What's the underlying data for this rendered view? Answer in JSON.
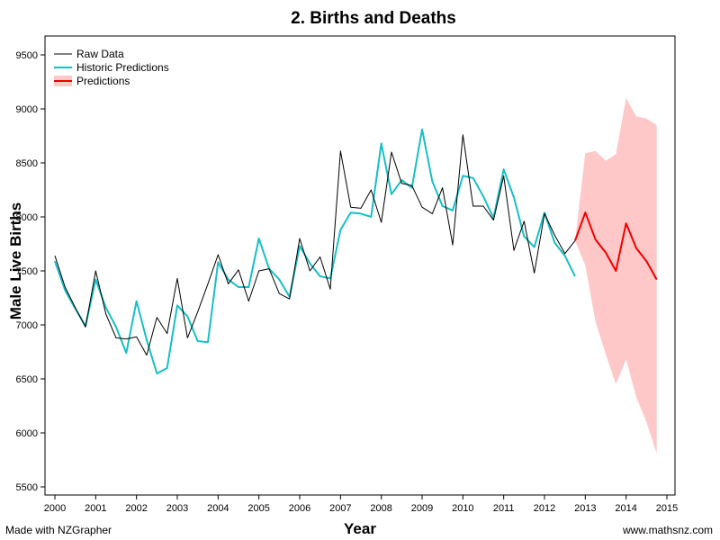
{
  "footer": {
    "left": "Made with NZGrapher",
    "right": "www.mathsnz.com"
  },
  "chart_data": {
    "type": "line",
    "title": "2. Births and Deaths",
    "xlabel": "Year",
    "ylabel": "Male Live Births",
    "xlim": [
      2000,
      2015
    ],
    "ylim": [
      5500,
      9500
    ],
    "x_ticks": [
      "2000",
      "2001",
      "2002",
      "2003",
      "2004",
      "2005",
      "2006",
      "2007",
      "2008",
      "2009",
      "2010",
      "2011",
      "2012",
      "2013",
      "2014",
      "2015"
    ],
    "y_ticks": [
      "5500",
      "6000",
      "6500",
      "7000",
      "7500",
      "8000",
      "8500",
      "9000",
      "9500"
    ],
    "grid": false,
    "legend_position": "top-left",
    "colors": {
      "raw": "#000000",
      "historic": "#17bfc4",
      "predictions": "#ee0000",
      "band": "#ffc8c8"
    },
    "series": [
      {
        "name": "Raw Data",
        "x": [
          2000.0,
          2000.25,
          2000.5,
          2000.75,
          2001.0,
          2001.25,
          2001.5,
          2001.75,
          2002.0,
          2002.25,
          2002.5,
          2002.75,
          2003.0,
          2003.25,
          2003.5,
          2003.75,
          2004.0,
          2004.25,
          2004.5,
          2004.75,
          2005.0,
          2005.25,
          2005.5,
          2005.75,
          2006.0,
          2006.25,
          2006.5,
          2006.75,
          2007.0,
          2007.25,
          2007.5,
          2007.75,
          2008.0,
          2008.25,
          2008.5,
          2008.75,
          2009.0,
          2009.25,
          2009.5,
          2009.75,
          2010.0,
          2010.25,
          2010.5,
          2010.75,
          2011.0,
          2011.25,
          2011.5,
          2011.75,
          2012.0,
          2012.25,
          2012.5,
          2012.75
        ],
        "y": [
          7640,
          7350,
          7160,
          6980,
          7500,
          7100,
          6880,
          6870,
          6890,
          6720,
          7070,
          6920,
          7430,
          6880,
          7120,
          7380,
          7650,
          7380,
          7510,
          7220,
          7500,
          7520,
          7290,
          7240,
          7800,
          7500,
          7630,
          7330,
          8610,
          8090,
          8080,
          8250,
          7950,
          8600,
          8310,
          8290,
          8090,
          8030,
          8270,
          7740,
          8760,
          8100,
          8100,
          7970,
          8380,
          7690,
          7960,
          7480,
          8030,
          7830,
          7660,
          7780
        ]
      },
      {
        "name": "Historic Predictions",
        "x": [
          2000.0,
          2000.25,
          2000.5,
          2000.75,
          2001.0,
          2001.25,
          2001.5,
          2001.75,
          2002.0,
          2002.25,
          2002.5,
          2002.75,
          2003.0,
          2003.25,
          2003.5,
          2003.75,
          2004.0,
          2004.25,
          2004.5,
          2004.75,
          2005.0,
          2005.25,
          2005.5,
          2005.75,
          2006.0,
          2006.25,
          2006.5,
          2006.75,
          2007.0,
          2007.25,
          2007.5,
          2007.75,
          2008.0,
          2008.25,
          2008.5,
          2008.75,
          2009.0,
          2009.25,
          2009.5,
          2009.75,
          2010.0,
          2010.25,
          2010.5,
          2010.75,
          2011.0,
          2011.25,
          2011.5,
          2011.75,
          2012.0,
          2012.25,
          2012.5,
          2012.75
        ],
        "y": [
          7590,
          7320,
          7150,
          6990,
          7420,
          7160,
          6980,
          6740,
          7220,
          6860,
          6550,
          6600,
          7180,
          7080,
          6850,
          6840,
          7580,
          7420,
          7350,
          7350,
          7800,
          7520,
          7420,
          7260,
          7730,
          7570,
          7450,
          7430,
          7880,
          8040,
          8030,
          8000,
          8680,
          8210,
          8340,
          8270,
          8810,
          8330,
          8100,
          8060,
          8380,
          8360,
          8190,
          7990,
          8440,
          8180,
          7820,
          7720,
          8040,
          7760,
          7640,
          7450
        ]
      },
      {
        "name": "Predictions",
        "x": [
          2012.75,
          2013.0,
          2013.25,
          2013.5,
          2013.75,
          2014.0,
          2014.25,
          2014.5,
          2014.75
        ],
        "y": [
          7780,
          8040,
          7790,
          7670,
          7500,
          7940,
          7710,
          7590,
          7420
        ],
        "upper": [
          7780,
          8590,
          8610,
          8520,
          8580,
          9100,
          8930,
          8910,
          8850
        ],
        "lower": [
          7780,
          7550,
          7030,
          6730,
          6450,
          6680,
          6330,
          6100,
          5810
        ]
      }
    ]
  }
}
